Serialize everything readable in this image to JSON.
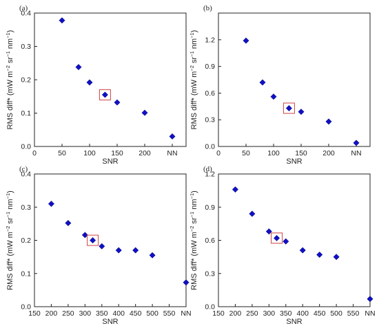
{
  "chart_data": [
    {
      "panel_label": "(a)",
      "type": "scatter",
      "xlabel": "SNR",
      "ylabel_main": "RMS diff* (mW m",
      "ylabel_sup1": "−2",
      "ylabel_mid": " sr",
      "ylabel_sup2": "−1",
      "ylabel_mid2": " nm",
      "ylabel_sup3": "−1",
      "ylabel_end": ")",
      "xlim": [
        0,
        275
      ],
      "xticks": [
        0,
        50,
        100,
        150,
        200,
        250
      ],
      "xtick_labels": [
        "0",
        "50",
        "100",
        "150",
        "200",
        "NN"
      ],
      "ylim": [
        0,
        0.4
      ],
      "yticks": [
        0,
        0.1,
        0.2,
        0.3,
        0.4
      ],
      "ytick_labels": [
        "0.0",
        "0.1",
        "0.2",
        "0.3",
        "0.4"
      ],
      "points": [
        {
          "x": 50,
          "y": 0.378
        },
        {
          "x": 80,
          "y": 0.238
        },
        {
          "x": 100,
          "y": 0.192
        },
        {
          "x": 128,
          "y": 0.155
        },
        {
          "x": 150,
          "y": 0.132
        },
        {
          "x": 200,
          "y": 0.101
        },
        {
          "x": 250,
          "y": 0.03
        }
      ],
      "highlight_index": 3,
      "colors": {
        "marker": "#1010c8",
        "highlight_box": "#d04040"
      }
    },
    {
      "panel_label": "(b)",
      "type": "scatter",
      "xlabel": "SNR",
      "ylabel_main": "RMS diff* (mW m",
      "ylabel_sup1": "−2",
      "ylabel_mid": " sr",
      "ylabel_sup2": "−1",
      "ylabel_mid2": " nm",
      "ylabel_sup3": "−1",
      "ylabel_end": ")",
      "xlim": [
        0,
        275
      ],
      "xticks": [
        0,
        50,
        100,
        150,
        200,
        250
      ],
      "xtick_labels": [
        "0",
        "50",
        "100",
        "150",
        "200",
        "NN"
      ],
      "ylim": [
        0,
        1.5
      ],
      "yticks": [
        0,
        0.3,
        0.6,
        0.9,
        1.2,
        1.5
      ],
      "ytick_labels": [
        "0.0",
        "0.3",
        "0.6",
        "0.9",
        "1.2",
        ""
      ],
      "points": [
        {
          "x": 50,
          "y": 1.19
        },
        {
          "x": 80,
          "y": 0.72
        },
        {
          "x": 100,
          "y": 0.56
        },
        {
          "x": 128,
          "y": 0.43
        },
        {
          "x": 150,
          "y": 0.39
        },
        {
          "x": 200,
          "y": 0.28
        },
        {
          "x": 250,
          "y": 0.04
        }
      ],
      "highlight_index": 3,
      "colors": {
        "marker": "#1010c8",
        "highlight_box": "#d04040"
      }
    },
    {
      "panel_label": "(c)",
      "type": "scatter",
      "xlabel": "SNR",
      "ylabel_main": "RMS diff* (mW m",
      "ylabel_sup1": "−2",
      "ylabel_mid": " sr",
      "ylabel_sup2": "−1",
      "ylabel_mid2": " nm",
      "ylabel_sup3": "−1",
      "ylabel_end": ")",
      "xlim": [
        150,
        600
      ],
      "xticks": [
        150,
        200,
        250,
        300,
        350,
        400,
        450,
        500,
        550,
        600
      ],
      "xtick_labels": [
        "150",
        "200",
        "250",
        "300",
        "350",
        "400",
        "450",
        "500",
        "550",
        "NN"
      ],
      "ylim": [
        0,
        0.4
      ],
      "yticks": [
        0,
        0.1,
        0.2,
        0.3,
        0.4
      ],
      "ytick_labels": [
        "0.0",
        "0.1",
        "0.2",
        "0.3",
        "0.4"
      ],
      "points": [
        {
          "x": 200,
          "y": 0.31
        },
        {
          "x": 250,
          "y": 0.252
        },
        {
          "x": 300,
          "y": 0.216
        },
        {
          "x": 323,
          "y": 0.2
        },
        {
          "x": 350,
          "y": 0.182
        },
        {
          "x": 400,
          "y": 0.17
        },
        {
          "x": 450,
          "y": 0.17
        },
        {
          "x": 500,
          "y": 0.155
        },
        {
          "x": 600,
          "y": 0.073
        }
      ],
      "highlight_index": 3,
      "colors": {
        "marker": "#1010c8",
        "highlight_box": "#d04040"
      }
    },
    {
      "panel_label": "(d)",
      "type": "scatter",
      "xlabel": "SNR",
      "ylabel_main": "RMS diff* (mW m",
      "ylabel_sup1": "−2",
      "ylabel_mid": " sr",
      "ylabel_sup2": "−1",
      "ylabel_mid2": " nm",
      "ylabel_sup3": "−1",
      "ylabel_end": ")",
      "xlim": [
        150,
        600
      ],
      "xticks": [
        150,
        200,
        250,
        300,
        350,
        400,
        450,
        500,
        550,
        600
      ],
      "xtick_labels": [
        "150",
        "200",
        "250",
        "300",
        "350",
        "400",
        "450",
        "500",
        "550",
        "NN"
      ],
      "ylim": [
        0,
        1.2
      ],
      "yticks": [
        0,
        0.3,
        0.6,
        0.9,
        1.2
      ],
      "ytick_labels": [
        "0.0",
        "0.3",
        "0.6",
        "0.9",
        "1.2"
      ],
      "points": [
        {
          "x": 200,
          "y": 1.06
        },
        {
          "x": 250,
          "y": 0.84
        },
        {
          "x": 300,
          "y": 0.68
        },
        {
          "x": 323,
          "y": 0.62
        },
        {
          "x": 350,
          "y": 0.59
        },
        {
          "x": 400,
          "y": 0.51
        },
        {
          "x": 450,
          "y": 0.47
        },
        {
          "x": 500,
          "y": 0.45
        },
        {
          "x": 600,
          "y": 0.07
        }
      ],
      "highlight_index": 3,
      "colors": {
        "marker": "#1010c8",
        "highlight_box": "#d04040"
      }
    }
  ]
}
